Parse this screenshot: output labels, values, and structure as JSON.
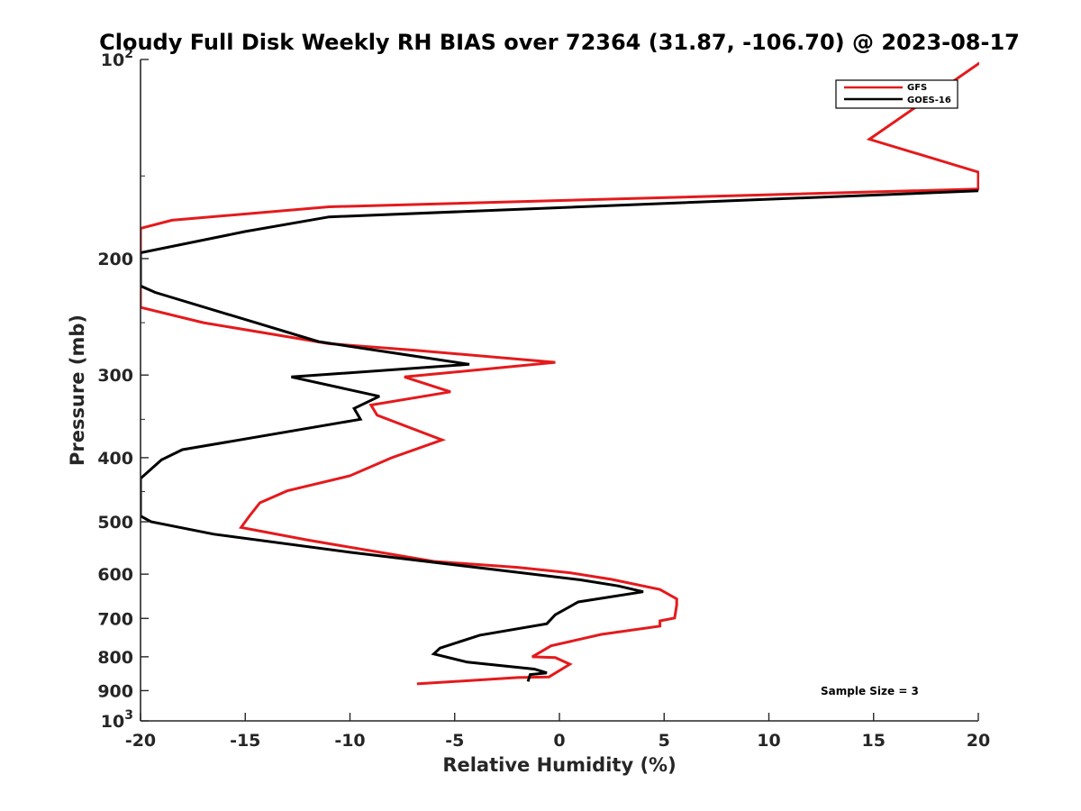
{
  "chart_data": {
    "type": "line",
    "title": "Cloudy Full Disk Weekly RH BIAS over 72364 (31.87, -106.70) @ 2023-08-17",
    "xlabel": "Relative Humidity (%)",
    "ylabel": "Pressure (mb)",
    "xlim": [
      -20,
      20
    ],
    "ylim": [
      100,
      1000
    ],
    "y_scale": "log",
    "y_reversed": true,
    "x_ticks": [
      -20,
      -15,
      -10,
      -5,
      0,
      5,
      10,
      15,
      20
    ],
    "y_ticks": [
      {
        "value": 100,
        "label": "10",
        "sup": "2"
      },
      {
        "value": 200,
        "label": "200"
      },
      {
        "value": 300,
        "label": "300"
      },
      {
        "value": 400,
        "label": "400"
      },
      {
        "value": 500,
        "label": "500"
      },
      {
        "value": 600,
        "label": "600"
      },
      {
        "value": 700,
        "label": "700"
      },
      {
        "value": 800,
        "label": "800"
      },
      {
        "value": 900,
        "label": "900"
      },
      {
        "value": 1000,
        "label": "10",
        "sup": "3"
      }
    ],
    "grid": false,
    "legend_position": "top-right",
    "annotation": "Sample Size = 3",
    "series": [
      {
        "name": "GFS",
        "color": "#e41a1c",
        "points": [
          [
            20.3,
            100
          ],
          [
            14.8,
            132
          ],
          [
            20.0,
            148
          ],
          [
            20.0,
            157
          ],
          [
            -11,
            167
          ],
          [
            -18.5,
            175
          ],
          [
            -20.0,
            180
          ],
          [
            -20.0,
            237
          ],
          [
            -17,
            250
          ],
          [
            -11,
            269
          ],
          [
            -7,
            275
          ],
          [
            -0.2,
            287
          ],
          [
            -7.4,
            302
          ],
          [
            -5.2,
            318
          ],
          [
            -9.0,
            333
          ],
          [
            -8.7,
            345
          ],
          [
            -5.6,
            376
          ],
          [
            -8.0,
            400
          ],
          [
            -10,
            426
          ],
          [
            -13,
            449
          ],
          [
            -14.3,
            468
          ],
          [
            -14.8,
            490
          ],
          [
            -15.2,
            510
          ],
          [
            -12.0,
            533
          ],
          [
            -6.0,
            574
          ],
          [
            -2.0,
            586
          ],
          [
            0.5,
            597
          ],
          [
            2.5,
            611
          ],
          [
            4.8,
            633
          ],
          [
            5.6,
            654
          ],
          [
            5.6,
            668
          ],
          [
            5.5,
            699
          ],
          [
            4.8,
            706
          ],
          [
            4.8,
            719
          ],
          [
            2.0,
            740
          ],
          [
            -0.4,
            770
          ],
          [
            -1.3,
            800
          ],
          [
            -0.2,
            802
          ],
          [
            0.5,
            821
          ],
          [
            -0.5,
            858
          ],
          [
            -2.0,
            860
          ],
          [
            -6.8,
            879
          ]
        ]
      },
      {
        "name": "GOES-16",
        "color": "#000000",
        "points": [
          [
            20.0,
            158
          ],
          [
            -11,
            173
          ],
          [
            -15,
            182
          ],
          [
            -20.0,
            196
          ],
          [
            -20.0,
            220
          ],
          [
            -19.3,
            225
          ],
          [
            -14.5,
            250
          ],
          [
            -11.5,
            267
          ],
          [
            -7.5,
            279
          ],
          [
            -4.3,
            289
          ],
          [
            -12.8,
            302
          ],
          [
            -8.6,
            323
          ],
          [
            -9.8,
            337
          ],
          [
            -9.5,
            350
          ],
          [
            -18.0,
            389
          ],
          [
            -19.0,
            403
          ],
          [
            -20.0,
            430
          ],
          [
            -20.0,
            490
          ],
          [
            -19.5,
            500
          ],
          [
            -16.5,
            522
          ],
          [
            -10,
            556
          ],
          [
            1.0,
            612
          ],
          [
            2.8,
            625
          ],
          [
            4.0,
            638
          ],
          [
            0.9,
            661
          ],
          [
            -0.2,
            691
          ],
          [
            -0.6,
            713
          ],
          [
            -3.8,
            742
          ],
          [
            -5.7,
            776
          ],
          [
            -6.0,
            792
          ],
          [
            -4.4,
            815
          ],
          [
            -1.2,
            835
          ],
          [
            -0.6,
            846
          ],
          [
            -1.4,
            851
          ],
          [
            -1.5,
            872
          ]
        ]
      }
    ]
  }
}
